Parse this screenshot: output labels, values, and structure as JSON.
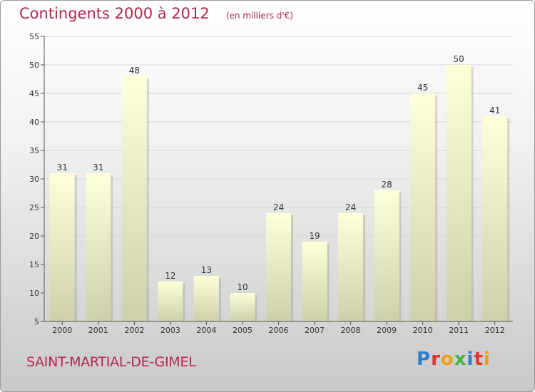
{
  "chart_data": {
    "type": "bar",
    "title": "Contingents 2000 à 2012",
    "subtitle": "(en milliers d'€)",
    "categories": [
      "2000",
      "2001",
      "2002",
      "2003",
      "2004",
      "2005",
      "2006",
      "2007",
      "2008",
      "2009",
      "2010",
      "2011",
      "2012"
    ],
    "values": [
      31,
      31,
      48,
      12,
      13,
      10,
      24,
      19,
      24,
      28,
      45,
      50,
      41
    ],
    "ylim": [
      5,
      55
    ],
    "yticks": [
      5,
      10,
      15,
      20,
      25,
      30,
      35,
      40,
      45,
      50,
      55
    ],
    "grid": true,
    "colors": {
      "title": "#b5254b",
      "bar_top": "#ffffd8",
      "bar_bottom": "#cfcfa8"
    }
  },
  "footer": {
    "commune": "SAINT-MARTIAL-DE-GIMEL",
    "brand": "Proxiti",
    "brand_colors": [
      "#2b7fd0",
      "#e2352a",
      "#f29a1b",
      "#49b33f",
      "#2b7fd0",
      "#e2352a",
      "#f29a1b"
    ]
  }
}
